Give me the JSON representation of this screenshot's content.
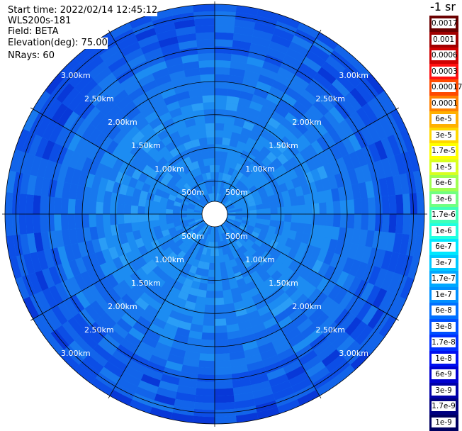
{
  "header": {
    "start_time": "Start time: 2022/02/14 12:45:12",
    "instrument": "WLS200s-181",
    "field": "Field: BETA",
    "elevation": "Elevation(deg): 75.00",
    "nrays": "NRays: 60"
  },
  "chart_data": {
    "type": "heatmap",
    "projection": "polar PPI",
    "field": "BETA",
    "unit_label": "-1 sr",
    "nrays": 60,
    "elevation_deg": 75.0,
    "range_rings": [
      "500m",
      "1.00km",
      "1.50km",
      "2.00km",
      "2.50km",
      "3.00km"
    ],
    "range_rings_km": [
      0.5,
      1.0,
      1.5,
      2.0,
      2.5,
      3.0
    ],
    "colorbar_labels": [
      "0.0017",
      "0.001",
      "0.0006",
      "0.0003",
      "0.00017",
      "0.0001",
      "6e-5",
      "3e-5",
      "1.7e-5",
      "1e-5",
      "6e-6",
      "3e-6",
      "1.7e-6",
      "1e-6",
      "6e-7",
      "3e-7",
      "1.7e-7",
      "1e-7",
      "6e-8",
      "3e-8",
      "1.7e-8",
      "1e-8",
      "6e-9",
      "3e-9",
      "1.7e-9",
      "1e-9"
    ],
    "colorbar_colors": [
      "#6a0000",
      "#a00000",
      "#d00000",
      "#ff1010",
      "#ff4a00",
      "#ff8000",
      "#ffb000",
      "#ffd800",
      "#ffff00",
      "#d8ff20",
      "#a0ff50",
      "#70ff80",
      "#40ffb8",
      "#20ffe0",
      "#00e8ff",
      "#00c8ff",
      "#00a8ff",
      "#0090ff",
      "#0070ff",
      "#0050ff",
      "#0030ff",
      "#0010f0",
      "#0000d0",
      "#0000a8",
      "#000080",
      "#000060"
    ],
    "dominant_values": {
      "inner": "3e-8",
      "outer": "1.7e-8 to 1e-8"
    }
  }
}
